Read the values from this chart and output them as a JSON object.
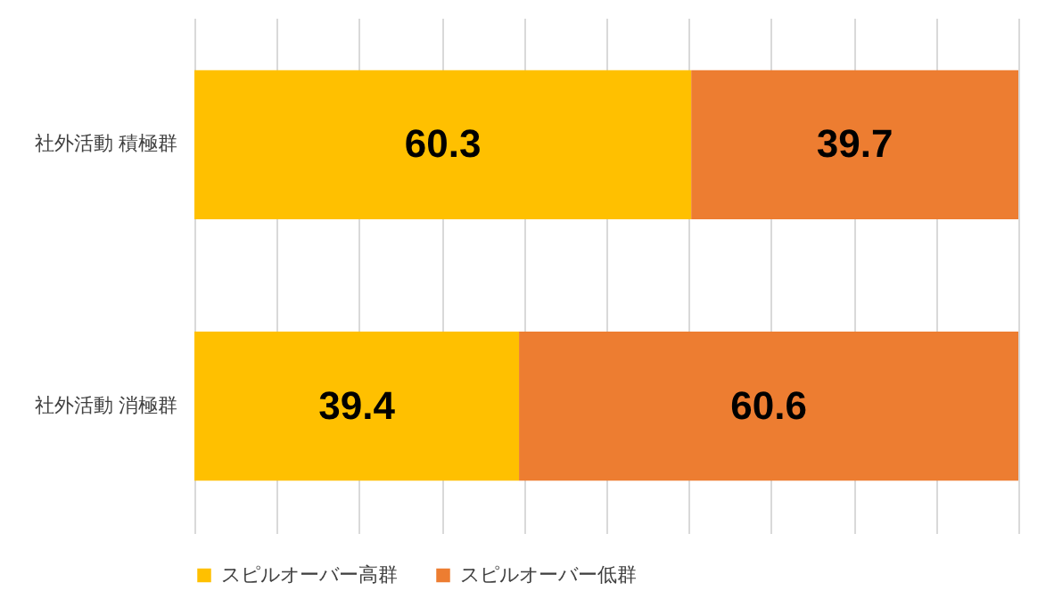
{
  "chart_data": {
    "type": "bar",
    "orientation": "horizontal",
    "stacked": true,
    "categories": [
      "社外活動 積極群",
      "社外活動 消極群"
    ],
    "series": [
      {
        "name": "スピルオーバー高群",
        "color": "#ffc000",
        "values": [
          60.3,
          39.4
        ]
      },
      {
        "name": "スピルオーバー低群",
        "color": "#ed7d31",
        "values": [
          39.7,
          60.6
        ]
      }
    ],
    "xlim": [
      0,
      100
    ],
    "xticks": [
      {
        "value": 0,
        "label": null
      },
      {
        "value": 10,
        "label": null
      },
      {
        "value": 20,
        "label": null
      },
      {
        "value": 30,
        "label": null
      },
      {
        "value": 40,
        "label": null
      },
      {
        "value": 50,
        "label": null
      },
      {
        "value": 60,
        "label": null
      },
      {
        "value": 70,
        "label": null
      },
      {
        "value": 80,
        "label": null
      },
      {
        "value": 90,
        "label": null
      },
      {
        "value": 100,
        "label": null
      }
    ],
    "tick_labels": "y",
    "grid": "x",
    "data_labels": true,
    "legend": "bottom"
  }
}
